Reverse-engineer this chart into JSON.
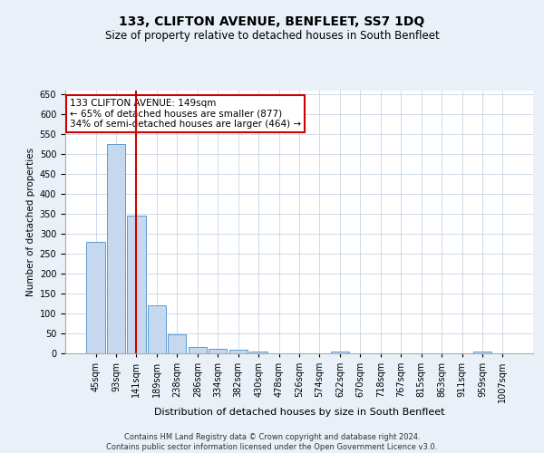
{
  "title": "133, CLIFTON AVENUE, BENFLEET, SS7 1DQ",
  "subtitle": "Size of property relative to detached houses in South Benfleet",
  "xlabel": "Distribution of detached houses by size in South Benfleet",
  "ylabel": "Number of detached properties",
  "footer1": "Contains HM Land Registry data © Crown copyright and database right 2024.",
  "footer2": "Contains public sector information licensed under the Open Government Licence v3.0.",
  "bar_labels": [
    "45sqm",
    "93sqm",
    "141sqm",
    "189sqm",
    "238sqm",
    "286sqm",
    "334sqm",
    "382sqm",
    "430sqm",
    "478sqm",
    "526sqm",
    "574sqm",
    "622sqm",
    "670sqm",
    "718sqm",
    "767sqm",
    "815sqm",
    "863sqm",
    "911sqm",
    "959sqm",
    "1007sqm"
  ],
  "bar_values": [
    280,
    525,
    345,
    120,
    48,
    15,
    12,
    8,
    5,
    0,
    0,
    0,
    5,
    0,
    0,
    0,
    0,
    0,
    0,
    5,
    0
  ],
  "bar_color": "#c5d8ed",
  "bar_edge_color": "#5b9bd5",
  "red_line_index": 2,
  "red_line_color": "#cc0000",
  "annotation_text": "133 CLIFTON AVENUE: 149sqm\n← 65% of detached houses are smaller (877)\n34% of semi-detached houses are larger (464) →",
  "annotation_box_color": "#ffffff",
  "annotation_box_edge": "#cc0000",
  "ylim": [
    0,
    660
  ],
  "yticks": [
    0,
    50,
    100,
    150,
    200,
    250,
    300,
    350,
    400,
    450,
    500,
    550,
    600,
    650
  ],
  "grid_color": "#c8d4e3",
  "background_color": "#eaf0f8",
  "plot_bg_color": "#ffffff",
  "title_fontsize": 10,
  "subtitle_fontsize": 8.5,
  "xlabel_fontsize": 8,
  "ylabel_fontsize": 7.5,
  "tick_fontsize": 7,
  "annotation_fontsize": 7.5,
  "footer_fontsize": 6
}
